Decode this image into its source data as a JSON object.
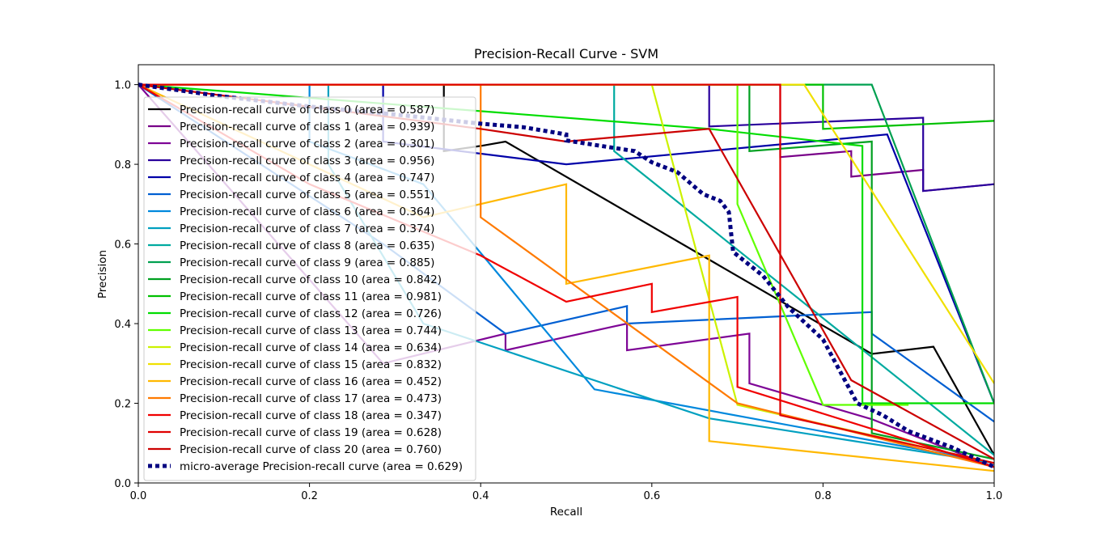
{
  "chart_data": {
    "type": "line",
    "title": "Precision-Recall Curve - SVM",
    "xlabel": "Recall",
    "ylabel": "Precision",
    "xlim": [
      0.0,
      1.0
    ],
    "ylim": [
      0.0,
      1.05
    ],
    "xticks": [
      "0.0",
      "0.2",
      "0.4",
      "0.6",
      "0.8",
      "1.0"
    ],
    "yticks": [
      "0.0",
      "0.2",
      "0.4",
      "0.6",
      "0.8",
      "1.0"
    ],
    "grid": false,
    "legend_position": "upper-left",
    "series": [
      {
        "name": "Precision-recall curve of class 0 (area = 0.587)",
        "color": "#000000",
        "dash": false,
        "points": [
          [
            0,
            1
          ],
          [
            0.357,
            1
          ],
          [
            0.357,
            0.833
          ],
          [
            0.4,
            0.846
          ],
          [
            0.429,
            0.857
          ],
          [
            0.857,
            0.324
          ],
          [
            0.929,
            0.342
          ],
          [
            1,
            0.07
          ]
        ]
      },
      {
        "name": "Precision-recall curve of class 1 (area = 0.939)",
        "color": "#780088",
        "dash": false,
        "points": [
          [
            0,
            1
          ],
          [
            0.75,
            1
          ],
          [
            0.75,
            0.818
          ],
          [
            0.833,
            0.833
          ],
          [
            0.833,
            0.769
          ],
          [
            0.917,
            0.786
          ],
          [
            0.917,
            0.733
          ],
          [
            1,
            0.75
          ]
        ]
      },
      {
        "name": "Precision-recall curve of class 2 (area = 0.301)",
        "color": "#7e0596",
        "dash": false,
        "points": [
          [
            0,
            1
          ],
          [
            0.286,
            0.3
          ],
          [
            0.429,
            0.375
          ],
          [
            0.429,
            0.333
          ],
          [
            0.571,
            0.4
          ],
          [
            0.571,
            0.333
          ],
          [
            0.714,
            0.375
          ],
          [
            0.714,
            0.25
          ],
          [
            0.857,
            0.16
          ],
          [
            1,
            0.04
          ]
        ]
      },
      {
        "name": "Precision-recall curve of class 3 (area = 0.956)",
        "color": "#29009c",
        "dash": false,
        "points": [
          [
            0,
            1
          ],
          [
            0.667,
            1
          ],
          [
            0.667,
            0.895
          ],
          [
            0.917,
            0.917
          ],
          [
            0.917,
            0.733
          ],
          [
            1,
            0.75
          ]
        ]
      },
      {
        "name": "Precision-recall curve of class 4 (area = 0.747)",
        "color": "#0000a8",
        "dash": false,
        "points": [
          [
            0,
            1
          ],
          [
            0.286,
            1
          ],
          [
            0.286,
            0.857
          ],
          [
            0.5,
            0.8
          ],
          [
            0.875,
            0.875
          ],
          [
            1,
            0.2
          ]
        ]
      },
      {
        "name": "Precision-recall curve of class 5 (area = 0.551)",
        "color": "#005fd2",
        "dash": false,
        "points": [
          [
            0,
            1
          ],
          [
            0.286,
            0.6
          ],
          [
            0.429,
            0.375
          ],
          [
            0.571,
            0.444
          ],
          [
            0.571,
            0.4
          ],
          [
            0.857,
            0.429
          ],
          [
            0.857,
            0.375
          ],
          [
            1,
            0.154
          ]
        ]
      },
      {
        "name": "Precision-recall curve of class 6 (area = 0.364)",
        "color": "#0088dd",
        "dash": false,
        "points": [
          [
            0,
            1
          ],
          [
            0.2,
            1
          ],
          [
            0.2,
            0.857
          ],
          [
            0.333,
            0.75
          ],
          [
            0.533,
            0.235
          ],
          [
            1,
            0.05
          ]
        ]
      },
      {
        "name": "Precision-recall curve of class 7 (area = 0.374)",
        "color": "#00a0c0",
        "dash": false,
        "points": [
          [
            0,
            1
          ],
          [
            0.222,
            1
          ],
          [
            0.222,
            0.8
          ],
          [
            0.333,
            0.4
          ],
          [
            0.667,
            0.162
          ],
          [
            1,
            0.05
          ]
        ]
      },
      {
        "name": "Precision-recall curve of class 8 (area = 0.635)",
        "color": "#00aaa0",
        "dash": false,
        "points": [
          [
            0,
            1
          ],
          [
            0.556,
            1
          ],
          [
            0.556,
            0.833
          ],
          [
            1,
            0.07
          ]
        ]
      },
      {
        "name": "Precision-recall curve of class 9 (area = 0.885)",
        "color": "#00a050",
        "dash": false,
        "points": [
          [
            0,
            1
          ],
          [
            0.857,
            1
          ],
          [
            1,
            0.2
          ]
        ]
      },
      {
        "name": "Precision-recall curve of class 10 (area = 0.842)",
        "color": "#00a020",
        "dash": false,
        "points": [
          [
            0,
            1
          ],
          [
            0.714,
            1
          ],
          [
            0.714,
            0.833
          ],
          [
            0.857,
            0.857
          ],
          [
            0.857,
            0.125
          ],
          [
            1,
            0.06
          ]
        ]
      },
      {
        "name": "Precision-recall curve of class 11 (area = 0.981)",
        "color": "#00c000",
        "dash": false,
        "points": [
          [
            0,
            1
          ],
          [
            0.8,
            1
          ],
          [
            0.8,
            0.889
          ],
          [
            1,
            0.909
          ]
        ]
      },
      {
        "name": "Precision-recall curve of class 12 (area = 0.726)",
        "color": "#00dd00",
        "dash": false,
        "points": [
          [
            0,
            1
          ],
          [
            0.667,
            0.889
          ],
          [
            0.8,
            0.857
          ],
          [
            0.846,
            0.846
          ],
          [
            0.846,
            0.2
          ],
          [
            1,
            0.2
          ]
        ]
      },
      {
        "name": "Precision-recall curve of class 13 (area = 0.744)",
        "color": "#60ff00",
        "dash": false,
        "points": [
          [
            0,
            1
          ],
          [
            0.7,
            1
          ],
          [
            0.7,
            0.7
          ],
          [
            0.8,
            0.196
          ],
          [
            0.9,
            0.196
          ]
        ]
      },
      {
        "name": "Precision-recall curve of class 14 (area = 0.634)",
        "color": "#ccf200",
        "dash": false,
        "points": [
          [
            0,
            1
          ],
          [
            0.6,
            1
          ],
          [
            0.7,
            0.196
          ],
          [
            1,
            0.05
          ]
        ]
      },
      {
        "name": "Precision-recall curve of class 15 (area = 0.832)",
        "color": "#f0e000",
        "dash": false,
        "points": [
          [
            0,
            1
          ],
          [
            0.778,
            1
          ],
          [
            1,
            0.25
          ]
        ]
      },
      {
        "name": "Precision-recall curve of class 16 (area = 0.452)",
        "color": "#ffb800",
        "dash": false,
        "points": [
          [
            0,
            1
          ],
          [
            0.333,
            0.667
          ],
          [
            0.5,
            0.75
          ],
          [
            0.5,
            0.5
          ],
          [
            0.667,
            0.571
          ],
          [
            0.667,
            0.105
          ],
          [
            1,
            0.03
          ]
        ]
      },
      {
        "name": "Precision-recall curve of class 17 (area = 0.473)",
        "color": "#ff7a00",
        "dash": false,
        "points": [
          [
            0,
            1
          ],
          [
            0.4,
            1
          ],
          [
            0.4,
            0.667
          ],
          [
            0.7,
            0.2
          ],
          [
            1,
            0.04
          ]
        ]
      },
      {
        "name": "Precision-recall curve of class 18 (area = 0.347)",
        "color": "#f00000",
        "dash": false,
        "points": [
          [
            0,
            1
          ],
          [
            0.2,
            0.75
          ],
          [
            0.4,
            0.571
          ],
          [
            0.5,
            0.455
          ],
          [
            0.6,
            0.5
          ],
          [
            0.6,
            0.429
          ],
          [
            0.7,
            0.467
          ],
          [
            0.7,
            0.241
          ],
          [
            1,
            0.04
          ]
        ]
      },
      {
        "name": "Precision-recall curve of class 19 (area = 0.628)",
        "color": "#e00000",
        "dash": false,
        "points": [
          [
            0,
            1
          ],
          [
            0.75,
            1
          ],
          [
            0.75,
            0.17
          ],
          [
            1,
            0.05
          ]
        ]
      },
      {
        "name": "Precision-recall curve of class 20 (area = 0.760)",
        "color": "#cc0000",
        "dash": false,
        "points": [
          [
            0,
            1
          ],
          [
            0.4,
            0.889
          ],
          [
            0.5,
            0.857
          ],
          [
            0.667,
            0.889
          ],
          [
            0.833,
            0.258
          ],
          [
            1,
            0.06
          ]
        ]
      },
      {
        "name": "micro-average Precision-recall curve (area = 0.629)",
        "color": "#000080",
        "dash": true,
        "points": [
          [
            0,
            1
          ],
          [
            0.1,
            0.97
          ],
          [
            0.2,
            0.945
          ],
          [
            0.3,
            0.925
          ],
          [
            0.4,
            0.902
          ],
          [
            0.45,
            0.893
          ],
          [
            0.5,
            0.875
          ],
          [
            0.5,
            0.86
          ],
          [
            0.55,
            0.843
          ],
          [
            0.58,
            0.833
          ],
          [
            0.6,
            0.805
          ],
          [
            0.63,
            0.78
          ],
          [
            0.66,
            0.725
          ],
          [
            0.68,
            0.708
          ],
          [
            0.69,
            0.68
          ],
          [
            0.695,
            0.58
          ],
          [
            0.73,
            0.52
          ],
          [
            0.76,
            0.44
          ],
          [
            0.8,
            0.36
          ],
          [
            0.84,
            0.2
          ],
          [
            0.87,
            0.17
          ],
          [
            0.9,
            0.13
          ],
          [
            0.95,
            0.09
          ],
          [
            1,
            0.04
          ]
        ]
      }
    ]
  }
}
